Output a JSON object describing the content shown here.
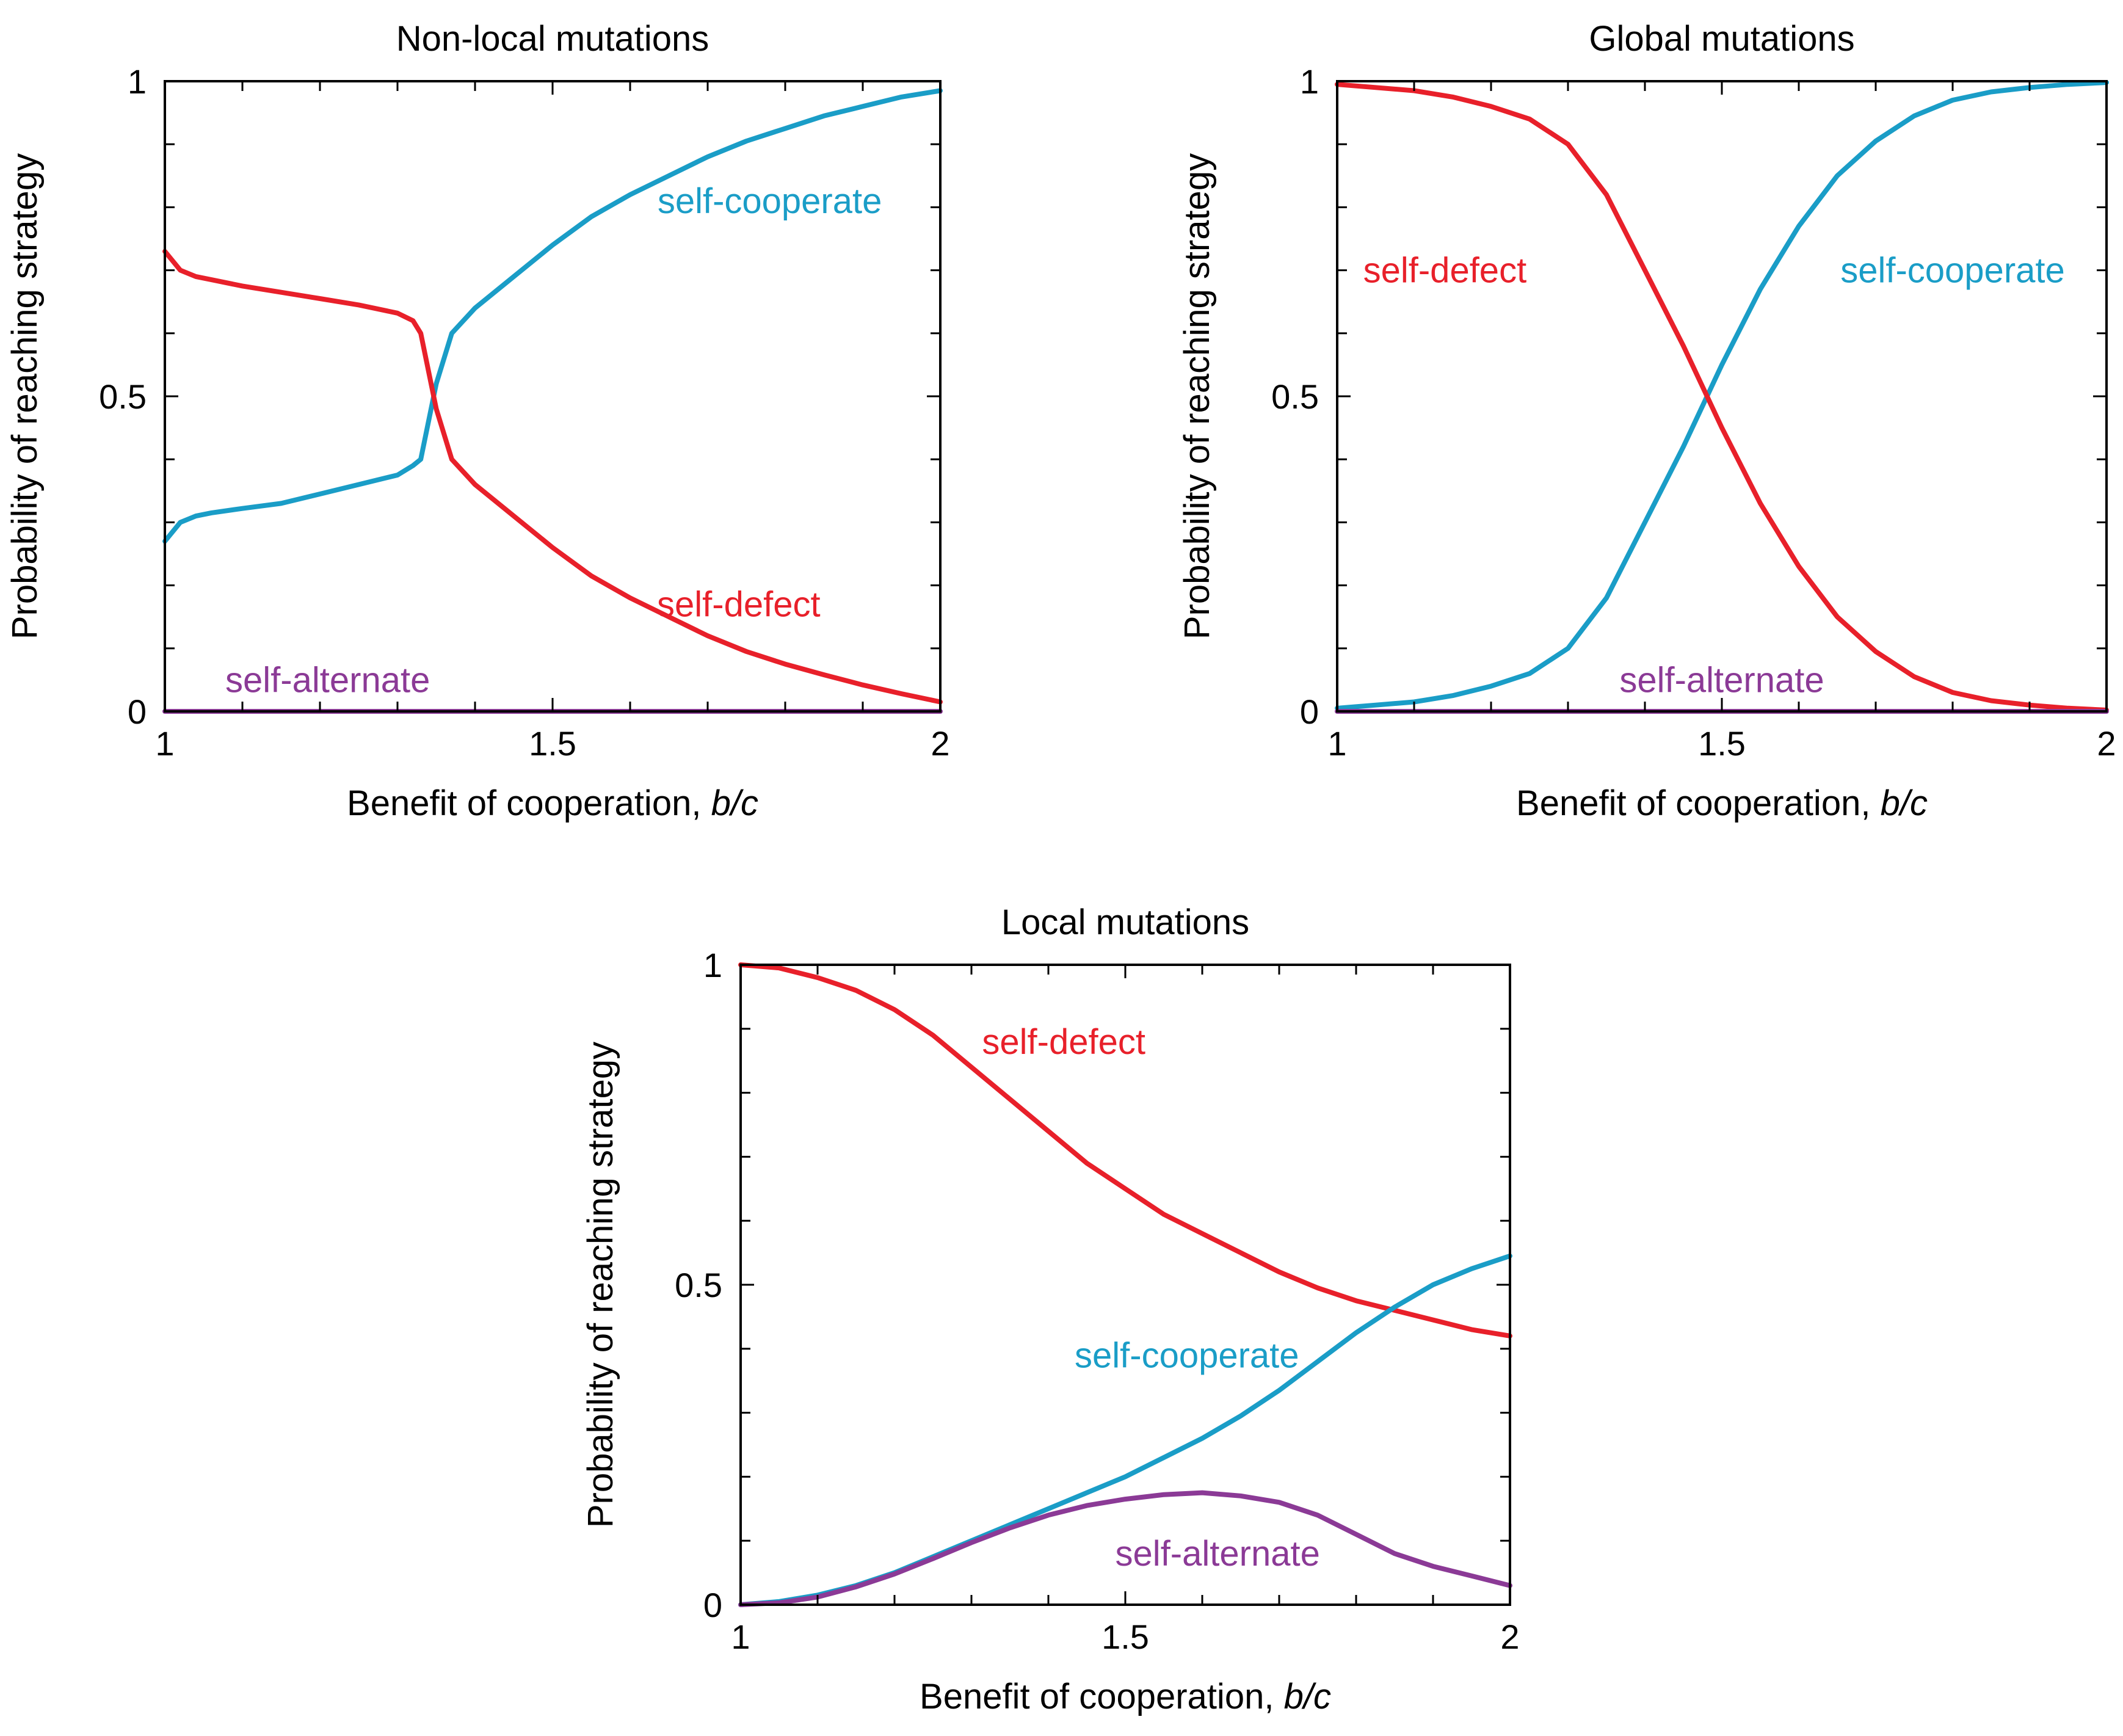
{
  "chart_data": [
    {
      "type": "line",
      "title": "Non-local mutations",
      "xlabel": "Benefit of cooperation,",
      "xlabel_italic": "b/c",
      "ylabel": "Probability of reaching strategy",
      "xlim": [
        1,
        2
      ],
      "ylim": [
        0,
        1
      ],
      "xticks": [
        1,
        1.5,
        2
      ],
      "xtick_labels": [
        "1",
        "1.5",
        "2"
      ],
      "yticks": [
        0,
        0.5,
        1
      ],
      "ytick_labels": [
        "0",
        "0.5",
        "1"
      ],
      "series": [
        {
          "name": "self-cooperate",
          "color": "#1a9dc7",
          "x": [
            1.0,
            1.02,
            1.04,
            1.06,
            1.1,
            1.15,
            1.2,
            1.25,
            1.3,
            1.32,
            1.33,
            1.35,
            1.37,
            1.4,
            1.45,
            1.5,
            1.55,
            1.6,
            1.65,
            1.7,
            1.75,
            1.8,
            1.85,
            1.9,
            1.95,
            2.0
          ],
          "y": [
            0.27,
            0.3,
            0.31,
            0.315,
            0.322,
            0.33,
            0.345,
            0.36,
            0.375,
            0.39,
            0.4,
            0.52,
            0.6,
            0.64,
            0.69,
            0.74,
            0.785,
            0.82,
            0.85,
            0.88,
            0.905,
            0.925,
            0.945,
            0.96,
            0.975,
            0.985
          ]
        },
        {
          "name": "self-defect",
          "color": "#e8202a",
          "x": [
            1.0,
            1.02,
            1.04,
            1.06,
            1.1,
            1.15,
            1.2,
            1.25,
            1.3,
            1.32,
            1.33,
            1.35,
            1.37,
            1.4,
            1.45,
            1.5,
            1.55,
            1.6,
            1.65,
            1.7,
            1.75,
            1.8,
            1.85,
            1.9,
            1.95,
            2.0
          ],
          "y": [
            0.73,
            0.7,
            0.69,
            0.685,
            0.675,
            0.665,
            0.655,
            0.645,
            0.632,
            0.62,
            0.6,
            0.48,
            0.4,
            0.36,
            0.31,
            0.26,
            0.215,
            0.18,
            0.15,
            0.12,
            0.095,
            0.075,
            0.058,
            0.042,
            0.028,
            0.015
          ]
        },
        {
          "name": "self-alternate",
          "color": "#8b3a96",
          "x": [
            1.0,
            2.0
          ],
          "y": [
            0.0,
            0.0
          ]
        }
      ],
      "annotations": [
        {
          "text": "self-cooperate",
          "x": 1.78,
          "y": 0.81,
          "color": "#1a9dc7"
        },
        {
          "text": "self-defect",
          "x": 1.74,
          "y": 0.17,
          "color": "#e8202a"
        },
        {
          "text": "self-alternate",
          "x": 1.21,
          "y": 0.05,
          "color": "#8b3a96"
        }
      ]
    },
    {
      "type": "line",
      "title": "Global mutations",
      "xlabel": "Benefit of cooperation,",
      "xlabel_italic": "b/c",
      "ylabel": "Probability of reaching strategy",
      "xlim": [
        1,
        2
      ],
      "ylim": [
        0,
        1
      ],
      "xticks": [
        1,
        1.5,
        2
      ],
      "xtick_labels": [
        "1",
        "1.5",
        "2"
      ],
      "yticks": [
        0,
        0.5,
        1
      ],
      "ytick_labels": [
        "0",
        "0.5",
        "1"
      ],
      "series": [
        {
          "name": "self-cooperate",
          "color": "#1a9dc7",
          "x": [
            1.0,
            1.05,
            1.1,
            1.15,
            1.2,
            1.25,
            1.3,
            1.35,
            1.4,
            1.45,
            1.5,
            1.55,
            1.6,
            1.65,
            1.7,
            1.75,
            1.8,
            1.85,
            1.9,
            1.95,
            2.0
          ],
          "y": [
            0.005,
            0.01,
            0.015,
            0.025,
            0.04,
            0.06,
            0.1,
            0.18,
            0.3,
            0.42,
            0.55,
            0.67,
            0.77,
            0.85,
            0.905,
            0.945,
            0.97,
            0.983,
            0.99,
            0.995,
            0.998
          ]
        },
        {
          "name": "self-defect",
          "color": "#e8202a",
          "x": [
            1.0,
            1.05,
            1.1,
            1.15,
            1.2,
            1.25,
            1.3,
            1.35,
            1.4,
            1.45,
            1.5,
            1.55,
            1.6,
            1.65,
            1.7,
            1.75,
            1.8,
            1.85,
            1.9,
            1.95,
            2.0
          ],
          "y": [
            0.995,
            0.99,
            0.985,
            0.975,
            0.96,
            0.94,
            0.9,
            0.82,
            0.7,
            0.58,
            0.45,
            0.33,
            0.23,
            0.15,
            0.095,
            0.055,
            0.03,
            0.017,
            0.01,
            0.005,
            0.002
          ]
        },
        {
          "name": "self-alternate",
          "color": "#8b3a96",
          "x": [
            1.0,
            2.0
          ],
          "y": [
            0.0,
            0.0
          ]
        }
      ],
      "annotations": [
        {
          "text": "self-defect",
          "x": 1.14,
          "y": 0.7,
          "color": "#e8202a"
        },
        {
          "text": "self-cooperate",
          "x": 1.8,
          "y": 0.7,
          "color": "#1a9dc7"
        },
        {
          "text": "self-alternate",
          "x": 1.5,
          "y": 0.05,
          "color": "#8b3a96"
        }
      ]
    },
    {
      "type": "line",
      "title": "Local mutations",
      "xlabel": "Benefit of cooperation,",
      "xlabel_italic": "b/c",
      "ylabel": "Probability of reaching strategy",
      "xlim": [
        1,
        2
      ],
      "ylim": [
        0,
        1
      ],
      "xticks": [
        1,
        1.5,
        2
      ],
      "xtick_labels": [
        "1",
        "1.5",
        "2"
      ],
      "yticks": [
        0,
        0.5,
        1
      ],
      "ytick_labels": [
        "0",
        "0.5",
        "1"
      ],
      "series": [
        {
          "name": "self-defect",
          "color": "#e8202a",
          "x": [
            1.0,
            1.05,
            1.1,
            1.15,
            1.2,
            1.25,
            1.3,
            1.35,
            1.4,
            1.45,
            1.5,
            1.55,
            1.6,
            1.65,
            1.7,
            1.75,
            1.8,
            1.85,
            1.9,
            1.95,
            2.0
          ],
          "y": [
            1.0,
            0.995,
            0.98,
            0.96,
            0.93,
            0.89,
            0.84,
            0.79,
            0.74,
            0.69,
            0.65,
            0.61,
            0.58,
            0.55,
            0.52,
            0.495,
            0.475,
            0.46,
            0.445,
            0.43,
            0.42
          ]
        },
        {
          "name": "self-cooperate",
          "color": "#1a9dc7",
          "x": [
            1.0,
            1.05,
            1.1,
            1.15,
            1.2,
            1.25,
            1.3,
            1.35,
            1.4,
            1.45,
            1.5,
            1.55,
            1.6,
            1.65,
            1.7,
            1.75,
            1.8,
            1.85,
            1.9,
            1.95,
            2.0
          ],
          "y": [
            0.0,
            0.005,
            0.015,
            0.03,
            0.05,
            0.075,
            0.1,
            0.125,
            0.15,
            0.175,
            0.2,
            0.23,
            0.26,
            0.295,
            0.335,
            0.38,
            0.425,
            0.465,
            0.5,
            0.525,
            0.545
          ]
        },
        {
          "name": "self-alternate",
          "color": "#8b3a96",
          "x": [
            1.0,
            1.05,
            1.1,
            1.15,
            1.2,
            1.25,
            1.3,
            1.35,
            1.4,
            1.45,
            1.5,
            1.55,
            1.6,
            1.65,
            1.7,
            1.75,
            1.8,
            1.85,
            1.9,
            1.95,
            2.0
          ],
          "y": [
            0.0,
            0.003,
            0.012,
            0.028,
            0.048,
            0.072,
            0.097,
            0.12,
            0.14,
            0.155,
            0.165,
            0.172,
            0.175,
            0.17,
            0.16,
            0.14,
            0.11,
            0.08,
            0.06,
            0.045,
            0.03
          ]
        }
      ],
      "annotations": [
        {
          "text": "self-defect",
          "x": 1.42,
          "y": 0.88,
          "color": "#e8202a"
        },
        {
          "text": "self-cooperate",
          "x": 1.58,
          "y": 0.39,
          "color": "#1a9dc7"
        },
        {
          "text": "self-alternate",
          "x": 1.62,
          "y": 0.08,
          "color": "#8b3a96"
        }
      ]
    }
  ]
}
